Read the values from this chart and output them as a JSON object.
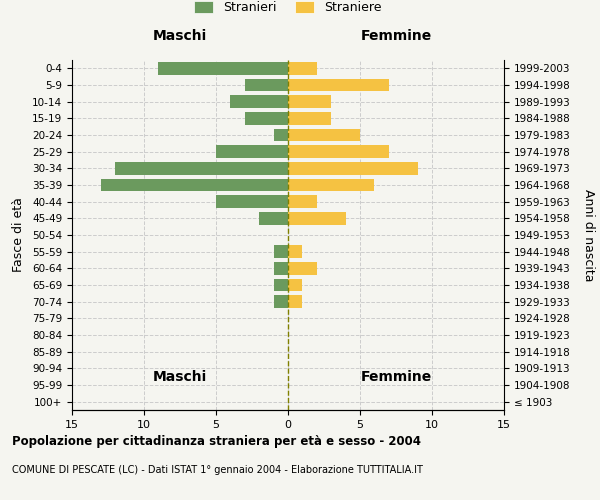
{
  "age_groups": [
    "100+",
    "95-99",
    "90-94",
    "85-89",
    "80-84",
    "75-79",
    "70-74",
    "65-69",
    "60-64",
    "55-59",
    "50-54",
    "45-49",
    "40-44",
    "35-39",
    "30-34",
    "25-29",
    "20-24",
    "15-19",
    "10-14",
    "5-9",
    "0-4"
  ],
  "birth_years": [
    "≤ 1903",
    "1904-1908",
    "1909-1913",
    "1914-1918",
    "1919-1923",
    "1924-1928",
    "1929-1933",
    "1934-1938",
    "1939-1943",
    "1944-1948",
    "1949-1953",
    "1954-1958",
    "1959-1963",
    "1964-1968",
    "1969-1973",
    "1974-1978",
    "1979-1983",
    "1984-1988",
    "1989-1993",
    "1994-1998",
    "1999-2003"
  ],
  "maschi": [
    0,
    0,
    0,
    0,
    0,
    0,
    1,
    1,
    1,
    1,
    0,
    2,
    5,
    13,
    12,
    5,
    1,
    3,
    4,
    3,
    9
  ],
  "femmine": [
    0,
    0,
    0,
    0,
    0,
    0,
    1,
    1,
    2,
    1,
    0,
    4,
    2,
    6,
    9,
    7,
    5,
    3,
    3,
    7,
    2
  ],
  "color_maschi": "#6b9a5e",
  "color_femmine": "#f5c242",
  "title_main": "Popolazione per cittadinanza straniera per età e sesso - 2004",
  "title_sub": "COMUNE DI PESCATE (LC) - Dati ISTAT 1° gennaio 2004 - Elaborazione TUTTITALIA.IT",
  "xlabel_left": "Maschi",
  "xlabel_right": "Femmine",
  "ylabel_left": "Fasce di età",
  "ylabel_right": "Anni di nascita",
  "xlim": 15,
  "legend_stranieri": "Stranieri",
  "legend_straniere": "Straniere",
  "background_color": "#f5f5f0",
  "grid_color": "#cccccc"
}
